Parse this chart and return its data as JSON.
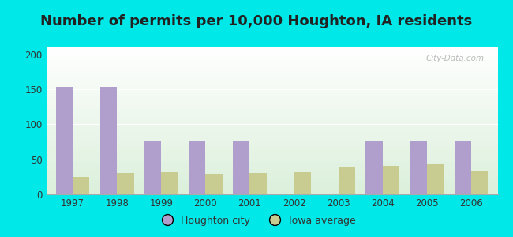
{
  "title": "Number of permits per 10,000 Houghton, IA residents",
  "years": [
    1997,
    1998,
    1999,
    2000,
    2001,
    2002,
    2003,
    2004,
    2005,
    2006
  ],
  "houghton_values": [
    153,
    153,
    76,
    76,
    76,
    0,
    0,
    76,
    76,
    76
  ],
  "iowa_values": [
    25,
    30,
    32,
    29,
    30,
    32,
    38,
    41,
    43,
    33
  ],
  "houghton_color": "#b09fcc",
  "iowa_color": "#c8cc90",
  "outer_bg": "#00e8e8",
  "ylim": [
    0,
    210
  ],
  "yticks": [
    0,
    50,
    100,
    150,
    200
  ],
  "bar_width": 0.38,
  "legend_houghton": "Houghton city",
  "legend_iowa": "Iowa average",
  "title_fontsize": 13,
  "watermark": "City-Data.com"
}
